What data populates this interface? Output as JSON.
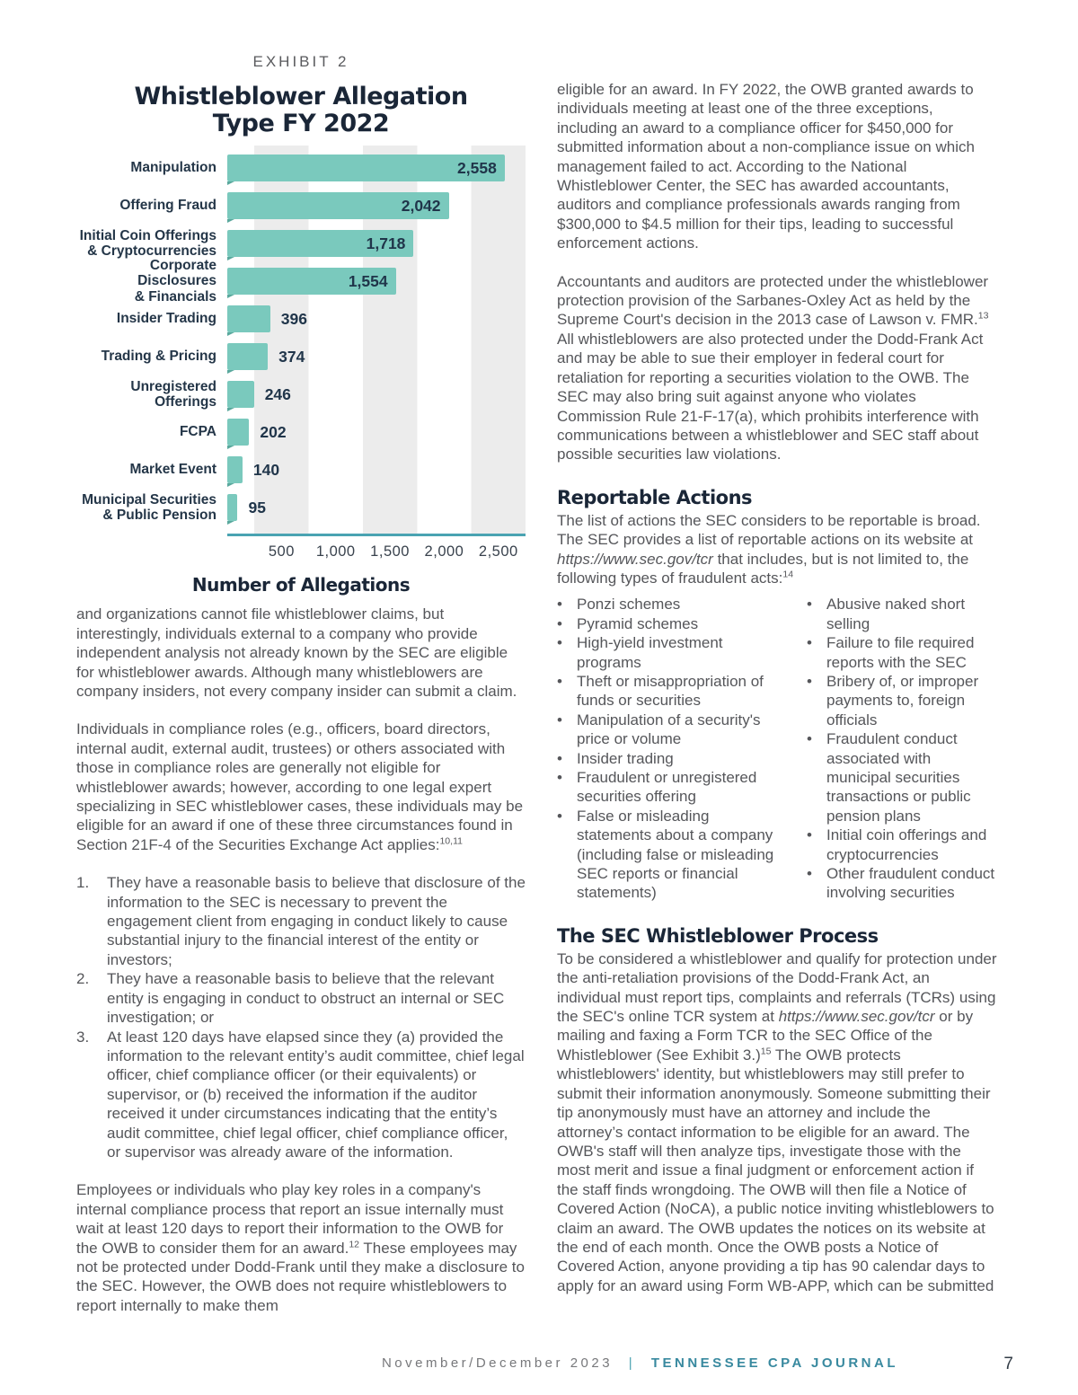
{
  "exhibit": {
    "kicker": "EXHIBIT 2"
  },
  "chart_data": {
    "type": "bar",
    "orientation": "horizontal",
    "title": "Whistleblower Allegation Type FY 2022",
    "title_lines": [
      "Whistleblower Allegation",
      "Type FY 2022"
    ],
    "xlabel": "Number of Allegations",
    "categories": [
      [
        "Manipulation"
      ],
      [
        "Offering Fraud"
      ],
      [
        "Initial Coin Offerings",
        "& Cryptocurrencies"
      ],
      [
        "Corporate Disclosures",
        "& Financials"
      ],
      [
        "Insider Trading"
      ],
      [
        "Trading & Pricing"
      ],
      [
        "Unregistered Offerings"
      ],
      [
        "FCPA"
      ],
      [
        "Market Event"
      ],
      [
        "Municipal Securities",
        "& Public Pension"
      ]
    ],
    "values": [
      2558,
      2042,
      1718,
      1554,
      396,
      374,
      246,
      202,
      140,
      95
    ],
    "value_labels": [
      "2,558",
      "2,042",
      "1,718",
      "1,554",
      "396",
      "374",
      "246",
      "202",
      "140",
      "95"
    ],
    "xlim": [
      0,
      2750
    ],
    "xticks": [
      500,
      1000,
      1500,
      2000,
      2500
    ],
    "xtick_labels": [
      "500",
      "1,000",
      "1,500",
      "2,000",
      "2,500"
    ],
    "label_inside_threshold": 1000,
    "bar_color": "#7ac9bd",
    "axis_color": "#4aa3b2",
    "stripe_color": "#ececec",
    "grid": "striped-bands"
  },
  "left_column": {
    "para_claims": [
      {
        "t": "and organizations cannot file whistleblower claims, but interestingly, individuals external to a company who provide independent analysis not already known by the SEC are eligible for whistleblower awards. Although many whistleblowers are company insiders, not every company insider can submit a claim."
      }
    ],
    "para_compliance": [
      {
        "t": "Individuals in compliance roles (e.g., officers, board directors, internal audit, external audit, trustees) or others associated with those in compliance roles are generally not eligible for whistleblower awards; however, according to one legal expert specializing in SEC whistleblower cases, these individuals may be eligible for an award if one of these three circumstances found in Section 21F-4 of the Securities Exchange Act applies:"
      },
      {
        "t": "10,11",
        "s": "sup"
      }
    ],
    "numbered_items": [
      [
        {
          "t": "They have a reasonable basis to believe that disclosure of the information to the SEC is necessary to prevent the engagement client from engaging in conduct likely to cause substantial injury to the financial interest of the entity or investors;"
        }
      ],
      [
        {
          "t": "They have a reasonable basis to believe that the relevant entity is engaging in conduct to obstruct an internal or SEC investigation; or"
        }
      ],
      [
        {
          "t": "At least 120 days have elapsed since they (a) provided the information to the relevant entity’s audit committee, chief legal officer, chief compliance officer (or their equivalents) or supervisor, or (b) received the information if the auditor received it under circumstances indicating that the entity’s audit committee, chief legal officer, chief compliance officer, or supervisor was already aware of the information."
        }
      ]
    ],
    "para_employees": [
      {
        "t": "Employees or individuals who play key roles in a company's internal compliance process that report an issue internally must wait at least 120 days to report their information to the OWB for the OWB to consider them for an award."
      },
      {
        "t": "12",
        "s": "sup"
      },
      {
        "t": " These employees may not be protected under Dodd-Frank until they make a disclosure to the SEC. However, the OWB does not require whistleblowers to report internally to make them"
      }
    ]
  },
  "right_column": {
    "para_eligible": [
      {
        "t": "eligible for an award. In FY 2022, the OWB granted awards to individuals meeting at least one of the three exceptions, including an award to a compliance officer for $450,000 for submitted information about a non-compliance issue on which management failed to act. According to the National Whistleblower Center, the SEC has awarded accountants, auditors and compliance professionals awards ranging from $300,000 to $4.5 million for their tips, leading to successful enforcement actions."
      }
    ],
    "para_accountants": [
      {
        "t": "Accountants and auditors are protected under the whistleblower protection provision of the Sarbanes-Oxley Act as held by the Supreme Court's decision in the 2013 case of Lawson v. FMR."
      },
      {
        "t": "13",
        "s": "sup"
      },
      {
        "t": " All whistleblowers are also protected under the Dodd-Frank Act and may be able to sue their employer in federal court for retaliation for reporting a securities violation to the OWB. The SEC may also bring suit against anyone who violates Commission Rule 21-F-17(a), which prohibits interference with communications between a whistleblower and SEC staff about possible securities law violations."
      }
    ],
    "heading_reportable": "Reportable Actions",
    "para_reportable": [
      {
        "t": "The list of actions the SEC considers to be reportable is broad. The SEC provides a list of reportable actions on its website at "
      },
      {
        "t": "https://www.sec.gov/tcr",
        "s": "i"
      },
      {
        "t": " that includes, but is not limited to, the following types of fraudulent acts:"
      },
      {
        "t": "14",
        "s": "sup"
      }
    ],
    "bullets_left": [
      "Ponzi schemes",
      "Pyramid schemes",
      "High-yield investment programs",
      "Theft or misappropriation of funds or securities",
      "Manipulation of a security's price or volume",
      "Insider trading",
      "Fraudulent or unregistered securities offering",
      "False or misleading statements about a company (including false or misleading SEC reports or financial statements)"
    ],
    "bullets_right": [
      "Abusive naked short selling",
      "Failure to file required reports with the SEC",
      "Bribery of, or improper payments to, foreign officials",
      "Fraudulent conduct associated with municipal securities transactions or public pension plans",
      "Initial coin offerings and cryptocurrencies",
      "Other fraudulent conduct involving securities"
    ],
    "heading_process": "The SEC Whistleblower Process",
    "para_process": [
      {
        "t": "To be considered a whistleblower and qualify for protection under the anti-retaliation provisions of the Dodd-Frank Act, an individual must report tips, complaints and referrals (TCRs) using the SEC's online TCR system at "
      },
      {
        "t": "https://www.sec.gov/tcr",
        "s": "i"
      },
      {
        "t": " or by mailing and faxing a Form TCR to the SEC Office of the Whistleblower (See Exhibit 3.)"
      },
      {
        "t": "15",
        "s": "sup"
      },
      {
        "t": " The OWB protects whistleblowers' identity, but whistleblowers may still prefer to submit their information anonymously. Someone submitting their tip anonymously must have an attorney and include the attorney’s contact information to be eligible for an award. The OWB's staff will then analyze tips, investigate those with the most merit and issue a final judgment or enforcement action if the staff finds wrongdoing. The OWB will then file a Notice of Covered Action (NoCA), a public notice inviting whistleblowers to claim an award. The OWB updates the notices on its website at the end of each month. Once the OWB posts a Notice of Covered Action, anyone providing a tip has 90 calendar days to apply for an award using Form WB-APP, which can be submitted"
      }
    ]
  },
  "footer": {
    "issue": "November/December 2023",
    "separator": "|",
    "journal": "TENNESSEE CPA JOURNAL",
    "page_number": "7"
  },
  "colors": {
    "bar_teal": "#7ac9bd",
    "bar_fold": "#5aa89d",
    "axis_teal": "#4aa3b2",
    "display_navy": "#1a2637",
    "body_gray": "#55565a",
    "stripe_gray": "#ececec",
    "footer_teal": "#38899f"
  }
}
